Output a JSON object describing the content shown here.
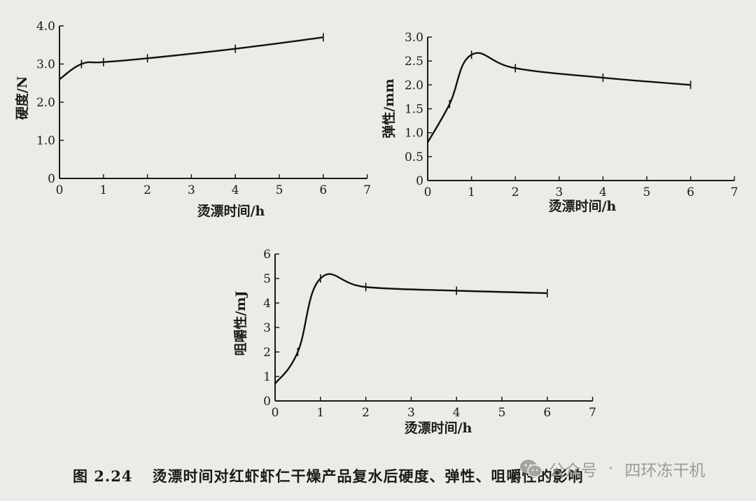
{
  "figure": {
    "caption_number": "图 2.24",
    "caption_text": "烫漂时间对红虾虾仁干燥产品复水后硬度、弹性、咀嚼性的影响",
    "watermark": {
      "icon": "wechat-icon",
      "label": "公众号",
      "separator": "·",
      "name": "四环冻干机"
    }
  },
  "chart_data": [
    {
      "type": "line",
      "xlabel": "烫漂时间/h",
      "ylabel": "硬度/N",
      "xlim": [
        0,
        7
      ],
      "ylim": [
        0,
        4
      ],
      "xticks": [
        0,
        1,
        2,
        3,
        4,
        5,
        6,
        7
      ],
      "yticks": [
        0,
        1,
        2,
        3,
        4
      ],
      "xtick_labels": [
        "0",
        "1",
        "2",
        "3",
        "4",
        "5",
        "6",
        "7"
      ],
      "ytick_labels": [
        "0",
        "1.0",
        "2.0",
        "3.0",
        "4.0"
      ],
      "grid": false,
      "series": [
        {
          "x": [
            0,
            0.5,
            1,
            2,
            4,
            6
          ],
          "y": [
            2.6,
            3.0,
            3.05,
            3.15,
            3.4,
            3.7
          ]
        }
      ]
    },
    {
      "type": "line",
      "xlabel": "烫漂时间/h",
      "ylabel": "弹性/mm",
      "xlim": [
        0,
        7
      ],
      "ylim": [
        0,
        3
      ],
      "xticks": [
        0,
        1,
        2,
        3,
        4,
        5,
        6,
        7
      ],
      "yticks": [
        0,
        0.5,
        1,
        1.5,
        2,
        2.5,
        3
      ],
      "xtick_labels": [
        "0",
        "1",
        "2",
        "3",
        "4",
        "5",
        "6",
        "7"
      ],
      "ytick_labels": [
        "0",
        "0.5",
        "1.0",
        "1.5",
        "2.0",
        "2.5",
        "3.0"
      ],
      "grid": false,
      "series": [
        {
          "x": [
            0,
            0.5,
            1,
            2,
            4,
            6
          ],
          "y": [
            0.8,
            1.6,
            2.63,
            2.35,
            2.15,
            2.0
          ]
        }
      ]
    },
    {
      "type": "line",
      "xlabel": "烫漂时间/h",
      "ylabel": "咀嚼性/mJ",
      "xlim": [
        0,
        7
      ],
      "ylim": [
        0,
        6
      ],
      "xticks": [
        0,
        1,
        2,
        3,
        4,
        5,
        6,
        7
      ],
      "yticks": [
        0,
        1,
        2,
        3,
        4,
        5,
        6
      ],
      "xtick_labels": [
        "0",
        "1",
        "2",
        "3",
        "4",
        "5",
        "6",
        "7"
      ],
      "ytick_labels": [
        "0",
        "1",
        "2",
        "3",
        "4",
        "5",
        "6"
      ],
      "grid": false,
      "series": [
        {
          "x": [
            0,
            0.5,
            1,
            2,
            4,
            6
          ],
          "y": [
            0.7,
            2.0,
            5.0,
            4.65,
            4.5,
            4.4
          ]
        }
      ]
    }
  ]
}
